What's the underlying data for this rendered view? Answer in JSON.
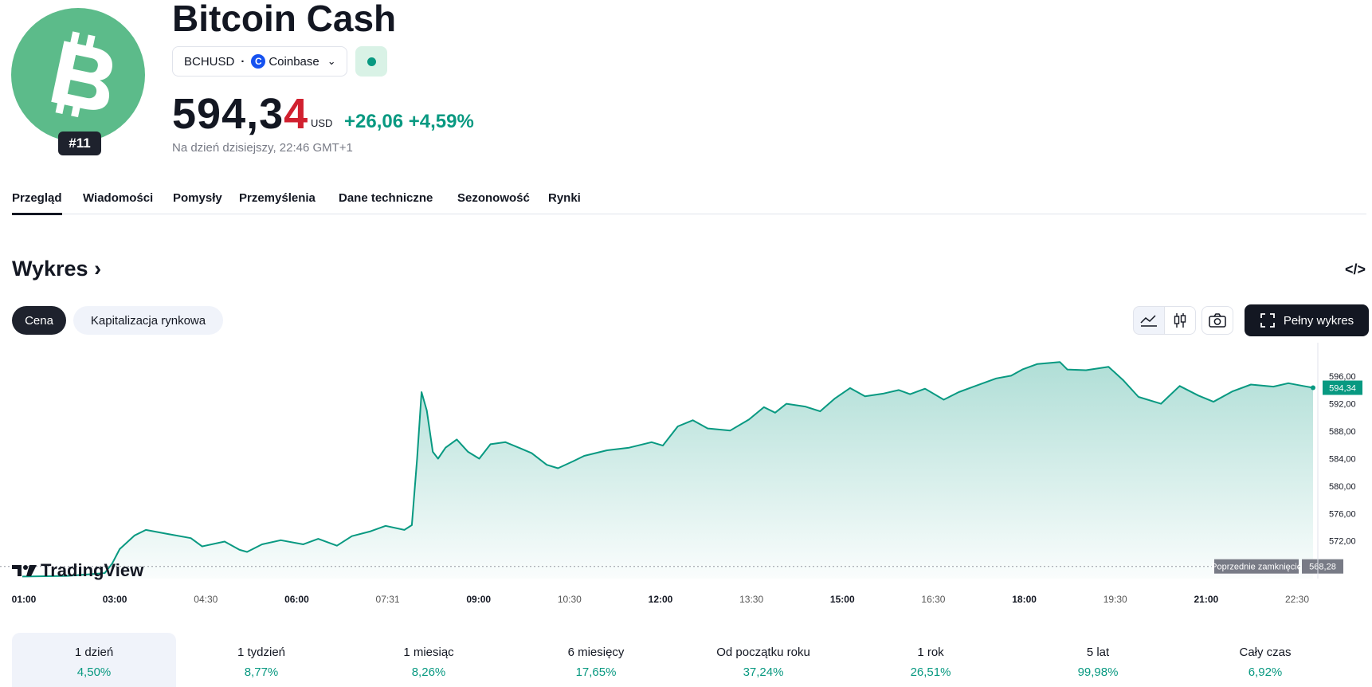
{
  "asset": {
    "name": "Bitcoin Cash",
    "rank": "#11",
    "symbol": "BCHUSD",
    "exchange": "Coinbase",
    "price_main": "594,3",
    "price_last_digit": "4",
    "currency": "USD",
    "change_abs": "+26,06",
    "change_pct": "+4,59%",
    "as_of": "Na dzień dzisiejszy, 22:46 GMT+1",
    "brand_color": "#5cbb8a"
  },
  "tabs": [
    "Przegląd",
    "Wiadomości",
    "Pomysły",
    "Przemyślenia",
    "Dane techniczne",
    "Sezonowość",
    "Rynki"
  ],
  "chart_section": {
    "title": "Wykres",
    "chips": [
      "Cena",
      "Kapitalizacja rynkowa"
    ],
    "full_chart_label": "Pełny wykres",
    "watermark": "TradingView",
    "icons": [
      "line-chart-icon",
      "candles-icon",
      "camera-icon",
      "fullscreen-icon",
      "embed-code-icon"
    ]
  },
  "chart_data": {
    "type": "area",
    "line_color": "#089981",
    "x_ticks": [
      "01:00",
      "03:00",
      "04:30",
      "06:00",
      "07:31",
      "09:00",
      "10:30",
      "12:00",
      "13:30",
      "15:00",
      "16:30",
      "18:00",
      "19:30",
      "21:00",
      "22:30"
    ],
    "x_ticks_bold": [
      "01:00",
      "03:00",
      "06:00",
      "09:00",
      "12:00",
      "15:00",
      "18:00",
      "21:00"
    ],
    "y_ticks": [
      "572,00",
      "576,00",
      "580,00",
      "584,00",
      "588,00",
      "592,00",
      "596,00"
    ],
    "ylim": [
      566.5,
      598.5
    ],
    "last_value_label": "594,34",
    "prev_close_label": "Poprzednie zamknięcie",
    "prev_close_value": "568,28",
    "prev_close": 568.28,
    "points": [
      [
        "01:00",
        566.8
      ],
      [
        "02:00",
        566.9
      ],
      [
        "02:50",
        567.3
      ],
      [
        "03:00",
        568.7
      ],
      [
        "03:10",
        570.8
      ],
      [
        "03:30",
        572.8
      ],
      [
        "03:45",
        573.6
      ],
      [
        "04:15",
        573.0
      ],
      [
        "04:45",
        572.4
      ],
      [
        "05:00",
        571.2
      ],
      [
        "05:30",
        571.9
      ],
      [
        "05:50",
        570.7
      ],
      [
        "06:00",
        570.4
      ],
      [
        "06:20",
        571.5
      ],
      [
        "06:45",
        572.1
      ],
      [
        "07:15",
        571.5
      ],
      [
        "07:35",
        572.3
      ],
      [
        "08:00",
        571.3
      ],
      [
        "08:20",
        572.7
      ],
      [
        "08:45",
        573.4
      ],
      [
        "09:05",
        574.2
      ],
      [
        "09:30",
        573.6
      ],
      [
        "09:40",
        574.3
      ],
      [
        "09:47",
        584.0
      ],
      [
        "09:53",
        593.7
      ],
      [
        "10:00",
        591.0
      ],
      [
        "10:08",
        585.0
      ],
      [
        "10:15",
        584.0
      ],
      [
        "10:25",
        585.6
      ],
      [
        "10:40",
        586.8
      ],
      [
        "10:55",
        585.0
      ],
      [
        "11:10",
        584.0
      ],
      [
        "11:25",
        586.1
      ],
      [
        "11:45",
        586.4
      ],
      [
        "12:05",
        585.5
      ],
      [
        "12:20",
        584.8
      ],
      [
        "12:40",
        583.1
      ],
      [
        "12:55",
        582.6
      ],
      [
        "13:15",
        583.6
      ],
      [
        "13:30",
        584.4
      ],
      [
        "14:00",
        585.2
      ],
      [
        "14:30",
        585.6
      ],
      [
        "15:00",
        586.4
      ],
      [
        "15:15",
        585.9
      ],
      [
        "15:35",
        588.7
      ],
      [
        "15:55",
        589.6
      ],
      [
        "16:15",
        588.4
      ],
      [
        "16:45",
        588.1
      ],
      [
        "17:10",
        589.7
      ],
      [
        "17:30",
        591.5
      ],
      [
        "17:45",
        590.7
      ],
      [
        "18:00",
        592.0
      ],
      [
        "18:25",
        591.6
      ],
      [
        "18:45",
        590.9
      ],
      [
        "19:05",
        592.8
      ],
      [
        "19:25",
        594.3
      ],
      [
        "19:45",
        593.1
      ],
      [
        "20:10",
        593.5
      ],
      [
        "20:30",
        594.0
      ],
      [
        "20:45",
        593.4
      ],
      [
        "21:05",
        594.2
      ],
      [
        "21:30",
        592.6
      ],
      [
        "21:50",
        593.7
      ],
      [
        "22:10",
        594.5
      ],
      [
        "22:40",
        595.7
      ],
      [
        "23:00",
        596.1
      ],
      [
        "23:15",
        597.0
      ],
      [
        "23:35",
        597.8
      ],
      [
        "00:05",
        598.1
      ],
      [
        "00:15",
        597.0
      ],
      [
        "00:40",
        596.9
      ],
      [
        "01:10",
        597.4
      ],
      [
        "01:30",
        595.4
      ],
      [
        "01:50",
        593.0
      ],
      [
        "02:20",
        592.0
      ],
      [
        "02:45",
        594.6
      ],
      [
        "03:10",
        593.2
      ],
      [
        "03:30",
        592.3
      ],
      [
        "03:55",
        593.8
      ],
      [
        "04:20",
        594.8
      ],
      [
        "04:50",
        594.5
      ],
      [
        "05:10",
        595.0
      ],
      [
        "05:30",
        594.6
      ],
      [
        "05:43",
        594.34
      ]
    ]
  },
  "periods": [
    {
      "label": "1 dzień",
      "value": "4,50%"
    },
    {
      "label": "1 tydzień",
      "value": "8,77%"
    },
    {
      "label": "1 miesiąc",
      "value": "8,26%"
    },
    {
      "label": "6 miesięcy",
      "value": "17,65%"
    },
    {
      "label": "Od początku roku",
      "value": "37,24%"
    },
    {
      "label": "1 rok",
      "value": "26,51%"
    },
    {
      "label": "5 lat",
      "value": "99,98%"
    },
    {
      "label": "Cały czas",
      "value": "6,92%"
    }
  ]
}
